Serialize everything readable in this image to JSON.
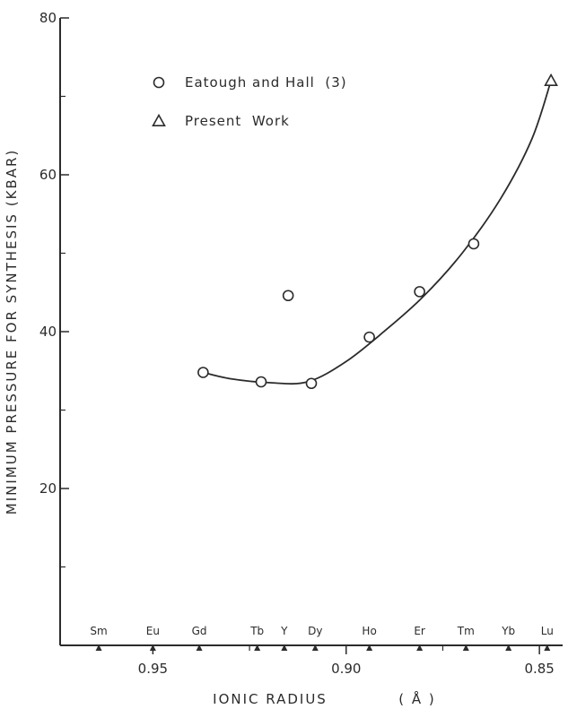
{
  "chart_data": {
    "type": "scatter",
    "x_axis": {
      "title": "IONIC  RADIUS",
      "unit": "( Å )",
      "range": [
        0.974,
        0.844
      ],
      "reversed": true,
      "ticks": [
        {
          "value": 0.95,
          "label": "0.95"
        },
        {
          "value": 0.9,
          "label": "0.90"
        },
        {
          "value": 0.85,
          "label": "0.85"
        }
      ],
      "minor_ticks": [
        0.925,
        0.875
      ]
    },
    "y_axis": {
      "title": "MINIMUM  PRESSURE  FOR  SYNTHESIS  (KBAR)",
      "range": [
        0,
        80
      ],
      "ticks": [
        {
          "value": 20,
          "label": "20"
        },
        {
          "value": 40,
          "label": "40"
        },
        {
          "value": 60,
          "label": "60"
        },
        {
          "value": 80,
          "label": "80"
        }
      ],
      "minor_ticks": [
        10,
        30,
        50,
        70
      ]
    },
    "elements": [
      {
        "symbol": "Sm",
        "radius": 0.964
      },
      {
        "symbol": "Eu",
        "radius": 0.95
      },
      {
        "symbol": "Gd",
        "radius": 0.938
      },
      {
        "symbol": "Tb",
        "radius": 0.923
      },
      {
        "symbol": "Y",
        "radius": 0.916
      },
      {
        "symbol": "Dy",
        "radius": 0.908
      },
      {
        "symbol": "Ho",
        "radius": 0.894
      },
      {
        "symbol": "Er",
        "radius": 0.881
      },
      {
        "symbol": "Tm",
        "radius": 0.869
      },
      {
        "symbol": "Yb",
        "radius": 0.858
      },
      {
        "symbol": "Lu",
        "radius": 0.848
      }
    ],
    "series": [
      {
        "name": "Eatough and Hall  (3)",
        "marker": "circle",
        "points": [
          {
            "x": 0.937,
            "y": 34.8
          },
          {
            "x": 0.922,
            "y": 33.6
          },
          {
            "x": 0.915,
            "y": 44.6
          },
          {
            "x": 0.909,
            "y": 33.4
          },
          {
            "x": 0.894,
            "y": 39.3
          },
          {
            "x": 0.881,
            "y": 45.1
          },
          {
            "x": 0.867,
            "y": 51.2
          }
        ]
      },
      {
        "name": "Present  Work",
        "marker": "triangle",
        "points": [
          {
            "x": 0.847,
            "y": 72.0
          }
        ]
      }
    ],
    "fit_curve": [
      {
        "x": 0.937,
        "y": 34.8
      },
      {
        "x": 0.93,
        "y": 34.0
      },
      {
        "x": 0.92,
        "y": 33.5
      },
      {
        "x": 0.91,
        "y": 33.6
      },
      {
        "x": 0.9,
        "y": 36.2
      },
      {
        "x": 0.89,
        "y": 40.1
      },
      {
        "x": 0.88,
        "y": 44.5
      },
      {
        "x": 0.87,
        "y": 50.0
      },
      {
        "x": 0.86,
        "y": 57.0
      },
      {
        "x": 0.852,
        "y": 64.5
      },
      {
        "x": 0.847,
        "y": 72.0
      }
    ],
    "legend_position": "top-left",
    "grid": false,
    "colors": {
      "ink": "#2b2b2b",
      "background": "#ffffff"
    }
  }
}
